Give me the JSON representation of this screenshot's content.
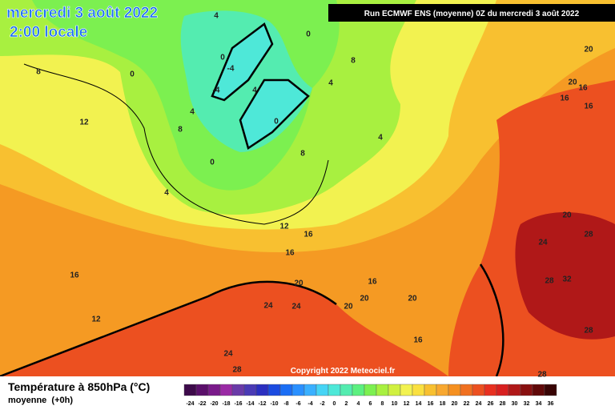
{
  "header": {
    "title": "mercredi 3 août 2022",
    "subtitle": "2:00 locale"
  },
  "run_info": "Run ECMWF ENS (moyenne) 0Z du mercredi 3 août 2022",
  "copyright": "Copyright 2022 Meteociel.fr",
  "legend": {
    "title": "Température à 850hPa (°C)",
    "subtitle": "moyenne  (+0h)",
    "ticks": [
      -24,
      -22,
      -20,
      -18,
      -16,
      -14,
      -12,
      -10,
      -8,
      -6,
      -4,
      -2,
      0,
      2,
      4,
      6,
      8,
      10,
      12,
      14,
      16,
      18,
      20,
      22,
      24,
      26,
      28,
      30,
      32,
      34,
      36
    ],
    "colors": [
      "#3d0a4a",
      "#5a0f6a",
      "#7a1a8a",
      "#9a2aa5",
      "#6a3aa8",
      "#4a3ab5",
      "#2b2fc0",
      "#1b4be0",
      "#1b6ef5",
      "#2a90ff",
      "#3ab0ff",
      "#46d4f5",
      "#4ee8d8",
      "#54ecb0",
      "#5cf080",
      "#7cf050",
      "#a8f040",
      "#d0f040",
      "#f2f250",
      "#fae040",
      "#f8c030",
      "#f8a830",
      "#f59020",
      "#f07020",
      "#ec5020",
      "#e83020",
      "#d82020",
      "#b01818",
      "#881010",
      "#600808",
      "#380404"
    ]
  },
  "map_labels": [
    4,
    0,
    20,
    8,
    0,
    0,
    -4,
    8,
    4,
    20,
    16,
    -4,
    4,
    16,
    16,
    12,
    4,
    8,
    0,
    4,
    8,
    0,
    4,
    20,
    12,
    16,
    28,
    24,
    16,
    16,
    16,
    20,
    28,
    32,
    24,
    24,
    20,
    20,
    20,
    12,
    16,
    24,
    28,
    28,
    28
  ]
}
